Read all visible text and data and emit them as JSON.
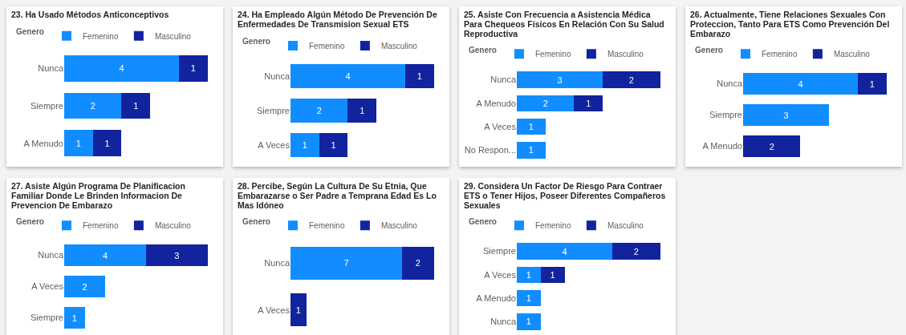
{
  "chart_data": [
    {
      "type": "bar",
      "orientation": "horizontal",
      "stacked": true,
      "data_labels": true,
      "legend": "top left",
      "legend_title": "Genero",
      "title": "23. Ha Usado Métodos Anticonceptivos",
      "categories": [
        "Nunca",
        "Siempre",
        "A Menudo"
      ],
      "series": [
        {
          "name": "Femenino",
          "color": "#118dff",
          "values": [
            4,
            2,
            1
          ]
        },
        {
          "name": "Masculino",
          "color": "#12239e",
          "values": [
            1,
            1,
            1
          ]
        }
      ]
    },
    {
      "type": "bar",
      "orientation": "horizontal",
      "stacked": true,
      "data_labels": true,
      "legend": "top left",
      "legend_title": "Genero",
      "title": "24. Ha Empleado Algún Método De Prevención De Enfermedades De Transmision Sexual ETS",
      "categories": [
        "Nunca",
        "Siempre",
        "A Veces"
      ],
      "series": [
        {
          "name": "Femenino",
          "color": "#118dff",
          "values": [
            4,
            2,
            1
          ]
        },
        {
          "name": "Masculino",
          "color": "#12239e",
          "values": [
            1,
            1,
            1
          ]
        }
      ]
    },
    {
      "type": "bar",
      "orientation": "horizontal",
      "stacked": true,
      "data_labels": true,
      "legend": "top left",
      "legend_title": "Genero",
      "title": "25. Asiste Con Frecuencia a Asistencia Médica Para Chequeos Físicos En Relación Con Su Salud Reproductiva",
      "categories": [
        "Nunca",
        "A Menudo",
        "A Veces",
        "No Respon..."
      ],
      "series": [
        {
          "name": "Femenino",
          "color": "#118dff",
          "values": [
            3,
            2,
            1,
            1
          ]
        },
        {
          "name": "Masculino",
          "color": "#12239e",
          "values": [
            2,
            1,
            null,
            null
          ]
        }
      ]
    },
    {
      "type": "bar",
      "orientation": "horizontal",
      "stacked": true,
      "data_labels": true,
      "legend": "top left",
      "legend_title": "Genero",
      "title": "26. Actualmente, Tiene Relaciones Sexuales Con Proteccion, Tanto Para ETS Como Prevención Del Embarazo",
      "categories": [
        "Nunca",
        "Siempre",
        "A Menudo"
      ],
      "series": [
        {
          "name": "Femenino",
          "color": "#118dff",
          "values": [
            4,
            3,
            null
          ]
        },
        {
          "name": "Masculino",
          "color": "#12239e",
          "values": [
            1,
            null,
            2
          ]
        }
      ]
    },
    {
      "type": "bar",
      "orientation": "horizontal",
      "stacked": true,
      "data_labels": true,
      "legend": "top left",
      "legend_title": "Genero",
      "title": "27. Asiste Algún Programa De Planificacion Familiar Donde Le Brinden Informacion De Prevencion De Embarazo",
      "categories": [
        "Nunca",
        "A Veces",
        "Siempre"
      ],
      "series": [
        {
          "name": "Femenino",
          "color": "#118dff",
          "values": [
            4,
            2,
            1
          ]
        },
        {
          "name": "Masculino",
          "color": "#12239e",
          "values": [
            3,
            null,
            null
          ]
        }
      ]
    },
    {
      "type": "bar",
      "orientation": "horizontal",
      "stacked": true,
      "data_labels": true,
      "legend": "top left",
      "legend_title": "Genero",
      "title": "28. Percibe, Según La Cultura De Su Etnia, Que Embarazarse o Ser Padre a Temprana Edad Es Lo Mas Idóneo",
      "categories": [
        "Nunca",
        "A Veces"
      ],
      "series": [
        {
          "name": "Femenino",
          "color": "#118dff",
          "values": [
            7,
            null
          ]
        },
        {
          "name": "Masculino",
          "color": "#12239e",
          "values": [
            2,
            1
          ]
        }
      ]
    },
    {
      "type": "bar",
      "orientation": "horizontal",
      "stacked": true,
      "data_labels": true,
      "legend": "top left",
      "legend_title": "Genero",
      "title": "29. Considera Un Factor De Riesgo Para Contraer ETS o Tener Hijos, Poseer Diferentes Compañeros Sexuales",
      "categories": [
        "Siempre",
        "A Veces",
        "A Menudo",
        "Nunca"
      ],
      "series": [
        {
          "name": "Femenino",
          "color": "#118dff",
          "values": [
            4,
            1,
            1,
            1
          ]
        },
        {
          "name": "Masculino",
          "color": "#12239e",
          "values": [
            2,
            1,
            null,
            null
          ]
        }
      ]
    }
  ]
}
